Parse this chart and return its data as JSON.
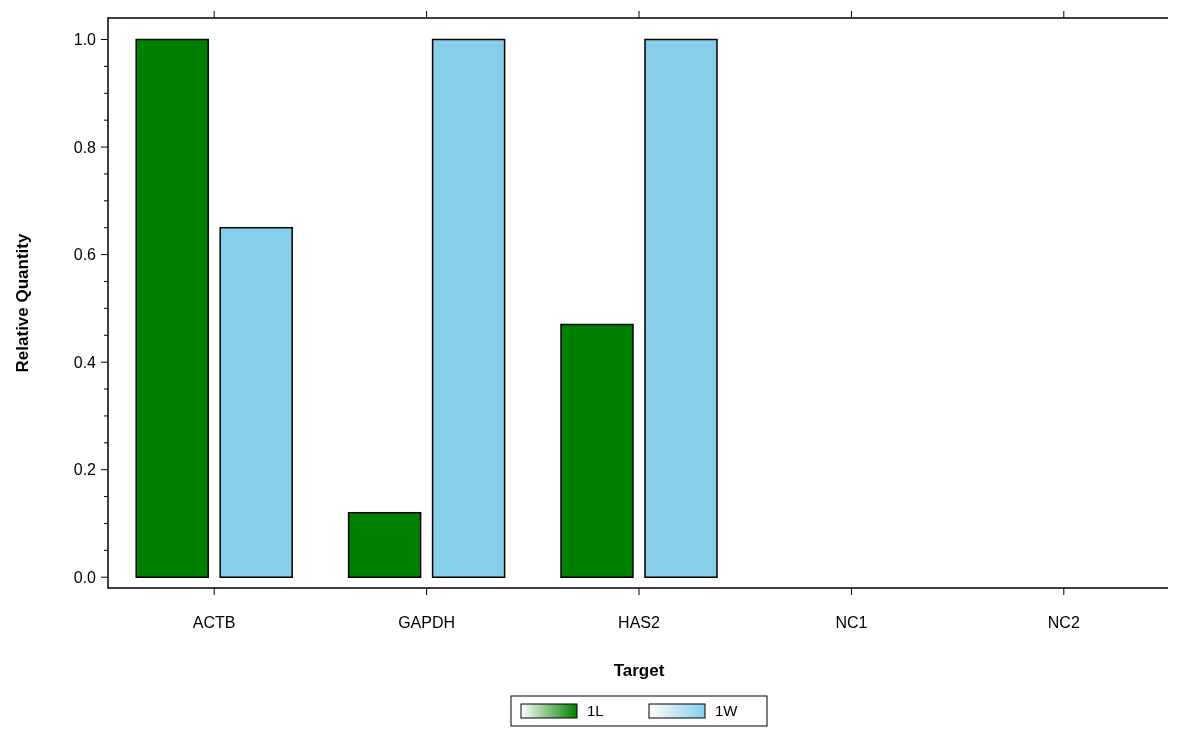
{
  "chart_data": {
    "type": "bar",
    "xlabel": "Target",
    "ylabel": "Relative Quantity",
    "categories": [
      "ACTB",
      "GAPDH",
      "HAS2",
      "NC1",
      "NC2"
    ],
    "series": [
      {
        "name": "1L",
        "color": "#008000",
        "values": [
          1.0,
          0.12,
          0.47,
          null,
          null
        ]
      },
      {
        "name": "1W",
        "color": "#87ceeb",
        "values": [
          0.65,
          1.0,
          1.0,
          null,
          null
        ]
      }
    ],
    "ylim": [
      -0.02,
      1.04
    ],
    "yticks": [
      {
        "value": 0,
        "label": "0.0"
      },
      {
        "value": 0.05,
        "label": null
      },
      {
        "value": 0.1,
        "label": null
      },
      {
        "value": 0.15,
        "label": null
      },
      {
        "value": 0.2,
        "label": "0.2"
      },
      {
        "value": 0.25,
        "label": null
      },
      {
        "value": 0.3,
        "label": null
      },
      {
        "value": 0.35,
        "label": null
      },
      {
        "value": 0.4,
        "label": "0.4"
      },
      {
        "value": 0.45,
        "label": null
      },
      {
        "value": 0.5,
        "label": null
      },
      {
        "value": 0.55,
        "label": null
      },
      {
        "value": 0.6,
        "label": "0.6"
      },
      {
        "value": 0.65,
        "label": null
      },
      {
        "value": 0.7,
        "label": null
      },
      {
        "value": 0.75,
        "label": null
      },
      {
        "value": 0.8,
        "label": "0.8"
      },
      {
        "value": 0.85,
        "label": null
      },
      {
        "value": 0.9,
        "label": null
      },
      {
        "value": 0.95,
        "label": null
      },
      {
        "value": 1.0,
        "label": "1.0"
      }
    ],
    "grid": false,
    "legend": "bottom"
  }
}
